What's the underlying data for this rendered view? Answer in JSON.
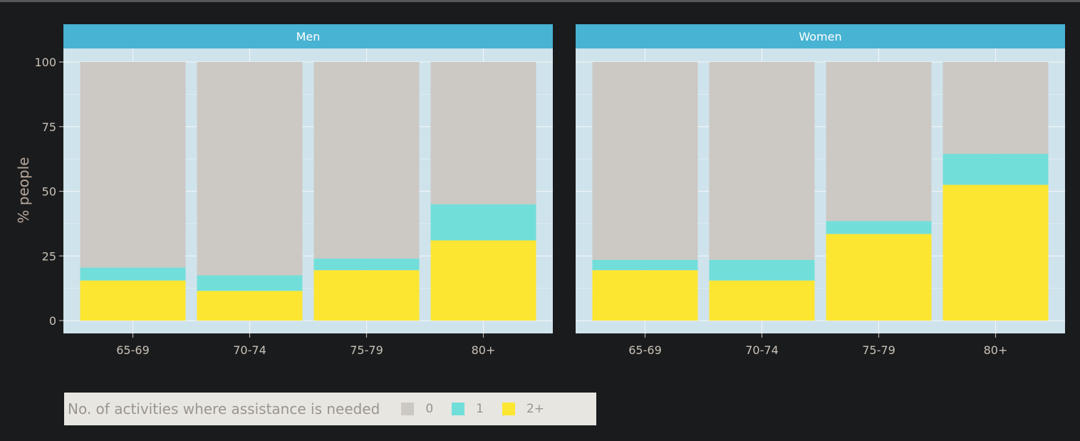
{
  "chart_data": {
    "type": "bar",
    "stacked": true,
    "ylabel": "% people",
    "ylim": [
      0,
      100
    ],
    "yticks": [
      0,
      25,
      50,
      75,
      100
    ],
    "categories": [
      "65-69",
      "70-74",
      "75-79",
      "80+"
    ],
    "legend": {
      "title": "No. of activities where assistance is needed",
      "placement": "bottom-left"
    },
    "facets": [
      {
        "title": "Men",
        "series": [
          {
            "name": "2+",
            "color": "#fde632",
            "values": [
              15.5,
              11.5,
              19.5,
              31
            ]
          },
          {
            "name": "1",
            "color": "#72ded9",
            "values": [
              5,
              6,
              4.5,
              14
            ]
          },
          {
            "name": "0",
            "color": "#ccc8c3",
            "values": [
              79.5,
              82.5,
              76,
              55
            ]
          }
        ]
      },
      {
        "title": "Women",
        "series": [
          {
            "name": "2+",
            "color": "#fde632",
            "values": [
              19.5,
              15.5,
              33.5,
              52.5
            ]
          },
          {
            "name": "1",
            "color": "#72ded9",
            "values": [
              4,
              8,
              5,
              12
            ]
          },
          {
            "name": "0",
            "color": "#ccc8c3",
            "values": [
              76.5,
              76.5,
              61.5,
              35.5
            ]
          }
        ]
      }
    ],
    "legend_order": [
      "0",
      "1",
      "2+"
    ],
    "colors": {
      "panel_bg": "#cfe3ec",
      "strip_bg": "#48b3d2",
      "grid": "#eef4f7"
    }
  }
}
